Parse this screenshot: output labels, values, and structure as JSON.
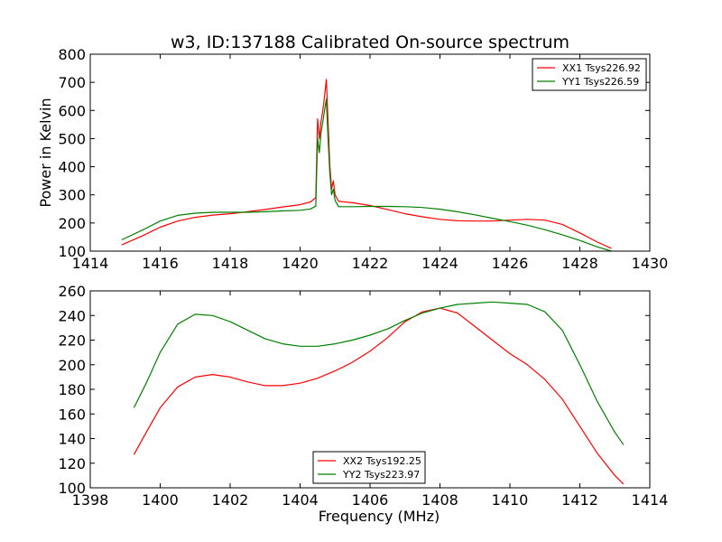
{
  "title": "w3, ID:137188 Calibrated On-source spectrum",
  "chart_data": [
    {
      "type": "line",
      "xlabel": "",
      "ylabel": "Power in Kelvin",
      "xlim": [
        1414,
        1430
      ],
      "ylim": [
        100,
        800
      ],
      "xticks": [
        "1414",
        "1416",
        "1418",
        "1420",
        "1422",
        "1424",
        "1426",
        "1428",
        "1430"
      ],
      "yticks": [
        "100",
        "200",
        "300",
        "400",
        "500",
        "600",
        "700",
        "800"
      ],
      "legend": "top-right",
      "series": [
        {
          "name": "XX1 Tsys226.92",
          "color": "#ff0000",
          "x": [
            1414.9,
            1415.5,
            1416.0,
            1416.5,
            1417.0,
            1417.5,
            1418.0,
            1418.5,
            1419.0,
            1419.5,
            1420.0,
            1420.3,
            1420.45,
            1420.5,
            1420.55,
            1420.6,
            1420.65,
            1420.7,
            1420.75,
            1420.8,
            1420.85,
            1420.9,
            1420.95,
            1421.0,
            1421.1,
            1421.5,
            1422.0,
            1422.5,
            1423.0,
            1423.5,
            1424.0,
            1424.5,
            1425.0,
            1425.5,
            1426.0,
            1426.5,
            1427.0,
            1427.5,
            1428.0,
            1428.5,
            1428.9
          ],
          "y": [
            122,
            155,
            185,
            207,
            220,
            228,
            233,
            240,
            248,
            257,
            265,
            275,
            290,
            570,
            500,
            560,
            600,
            650,
            710,
            560,
            410,
            320,
            350,
            300,
            277,
            272,
            262,
            248,
            233,
            222,
            213,
            208,
            207,
            207,
            210,
            213,
            210,
            195,
            165,
            132,
            110
          ]
        },
        {
          "name": "YY1 Tsys226.59",
          "color": "#008000",
          "x": [
            1414.9,
            1415.5,
            1416.0,
            1416.5,
            1417.0,
            1417.5,
            1418.0,
            1418.5,
            1419.0,
            1419.5,
            1420.0,
            1420.3,
            1420.45,
            1420.5,
            1420.55,
            1420.6,
            1420.65,
            1420.7,
            1420.75,
            1420.8,
            1420.85,
            1420.9,
            1420.95,
            1421.0,
            1421.1,
            1421.5,
            1422.0,
            1422.5,
            1423.0,
            1423.5,
            1424.0,
            1424.5,
            1425.0,
            1425.5,
            1426.0,
            1426.5,
            1427.0,
            1427.5,
            1428.0,
            1428.5,
            1428.9
          ],
          "y": [
            140,
            175,
            207,
            227,
            235,
            238,
            238,
            238,
            240,
            243,
            245,
            250,
            260,
            500,
            450,
            520,
            560,
            600,
            640,
            500,
            380,
            300,
            320,
            280,
            258,
            258,
            259,
            259,
            258,
            255,
            249,
            240,
            229,
            217,
            205,
            192,
            176,
            158,
            138,
            115,
            100
          ]
        }
      ]
    },
    {
      "type": "line",
      "xlabel": "Frequency (MHz)",
      "ylabel": "",
      "xlim": [
        1398,
        1414
      ],
      "ylim": [
        100,
        260
      ],
      "xticks": [
        "1398",
        "1400",
        "1402",
        "1404",
        "1406",
        "1408",
        "1410",
        "1412",
        "1414"
      ],
      "yticks": [
        "100",
        "120",
        "140",
        "160",
        "180",
        "200",
        "220",
        "240",
        "260"
      ],
      "legend": "bottom-center",
      "series": [
        {
          "name": "XX2 Tsys192.25",
          "color": "#ff0000",
          "x": [
            1399.25,
            1399.6,
            1400.0,
            1400.5,
            1401.0,
            1401.5,
            1402.0,
            1402.5,
            1403.0,
            1403.5,
            1404.0,
            1404.5,
            1405.0,
            1405.5,
            1406.0,
            1406.5,
            1407.0,
            1407.5,
            1408.0,
            1408.5,
            1409.0,
            1409.5,
            1410.0,
            1410.5,
            1411.0,
            1411.5,
            1412.0,
            1412.5,
            1413.0,
            1413.25
          ],
          "y": [
            127,
            145,
            165,
            182,
            190,
            192,
            190,
            186,
            183,
            183,
            185,
            189,
            195,
            202,
            211,
            222,
            235,
            243,
            246,
            242,
            231,
            220,
            209,
            200,
            188,
            172,
            150,
            128,
            110,
            103
          ]
        },
        {
          "name": "YY2 Tsys223.97",
          "color": "#008000",
          "x": [
            1399.25,
            1399.6,
            1400.0,
            1400.5,
            1401.0,
            1401.5,
            1402.0,
            1402.5,
            1403.0,
            1403.5,
            1404.0,
            1404.5,
            1405.0,
            1405.5,
            1406.0,
            1406.5,
            1407.0,
            1407.5,
            1408.0,
            1408.5,
            1409.0,
            1409.5,
            1410.0,
            1410.5,
            1411.0,
            1411.5,
            1412.0,
            1412.5,
            1413.0,
            1413.25
          ],
          "y": [
            165,
            185,
            210,
            233,
            241,
            240,
            235,
            228,
            221,
            217,
            215,
            215,
            217,
            220,
            224,
            229,
            236,
            242,
            246,
            249,
            250,
            251,
            250,
            249,
            243,
            228,
            200,
            170,
            145,
            135
          ]
        }
      ]
    }
  ]
}
